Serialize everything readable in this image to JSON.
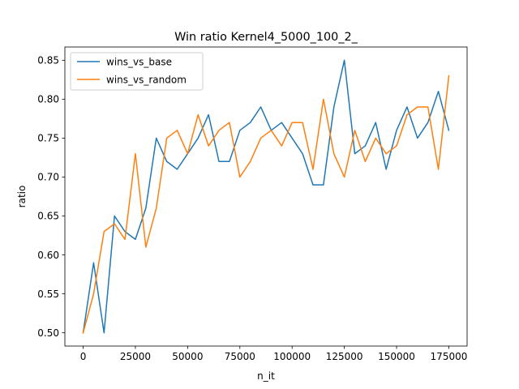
{
  "chart_data": {
    "type": "line",
    "title": "Win ratio Kernel4_5000_100_2_",
    "xlabel": "n_it",
    "ylabel": "ratio",
    "xlim": [
      -8750,
      183750
    ],
    "ylim": [
      0.483,
      0.867
    ],
    "xticks": [
      0,
      25000,
      50000,
      75000,
      100000,
      125000,
      150000,
      175000
    ],
    "yticks": [
      0.5,
      0.55,
      0.6,
      0.65,
      0.7,
      0.75,
      0.8,
      0.85
    ],
    "xtick_labels": [
      "0",
      "25000",
      "50000",
      "75000",
      "100000",
      "125000",
      "150000",
      "175000"
    ],
    "ytick_labels": [
      "0.50",
      "0.55",
      "0.60",
      "0.65",
      "0.70",
      "0.75",
      "0.80",
      "0.85"
    ],
    "grid": false,
    "legend_position": "upper-left",
    "x": [
      0,
      5000,
      10000,
      15000,
      20000,
      25000,
      30000,
      35000,
      40000,
      45000,
      50000,
      55000,
      60000,
      65000,
      70000,
      75000,
      80000,
      85000,
      90000,
      95000,
      100000,
      105000,
      110000,
      115000,
      120000,
      125000,
      130000,
      135000,
      140000,
      145000,
      150000,
      155000,
      160000,
      165000,
      170000,
      175000
    ],
    "series": [
      {
        "name": "wins_vs_base",
        "color": "#1f77b4",
        "values": [
          0.5,
          0.59,
          0.5,
          0.65,
          0.63,
          0.62,
          0.66,
          0.75,
          0.72,
          0.71,
          0.73,
          0.75,
          0.78,
          0.72,
          0.72,
          0.76,
          0.77,
          0.79,
          0.76,
          0.77,
          0.75,
          0.73,
          0.69,
          0.69,
          0.79,
          0.85,
          0.73,
          0.74,
          0.77,
          0.71,
          0.76,
          0.79,
          0.75,
          0.77,
          0.81,
          0.76
        ]
      },
      {
        "name": "wins_vs_random",
        "color": "#ff7f0e",
        "values": [
          0.5,
          0.55,
          0.63,
          0.64,
          0.62,
          0.73,
          0.61,
          0.66,
          0.75,
          0.76,
          0.73,
          0.78,
          0.74,
          0.76,
          0.77,
          0.7,
          0.72,
          0.75,
          0.76,
          0.74,
          0.77,
          0.77,
          0.71,
          0.8,
          0.73,
          0.7,
          0.76,
          0.72,
          0.75,
          0.73,
          0.74,
          0.78,
          0.79,
          0.79,
          0.71,
          0.83
        ]
      }
    ]
  }
}
